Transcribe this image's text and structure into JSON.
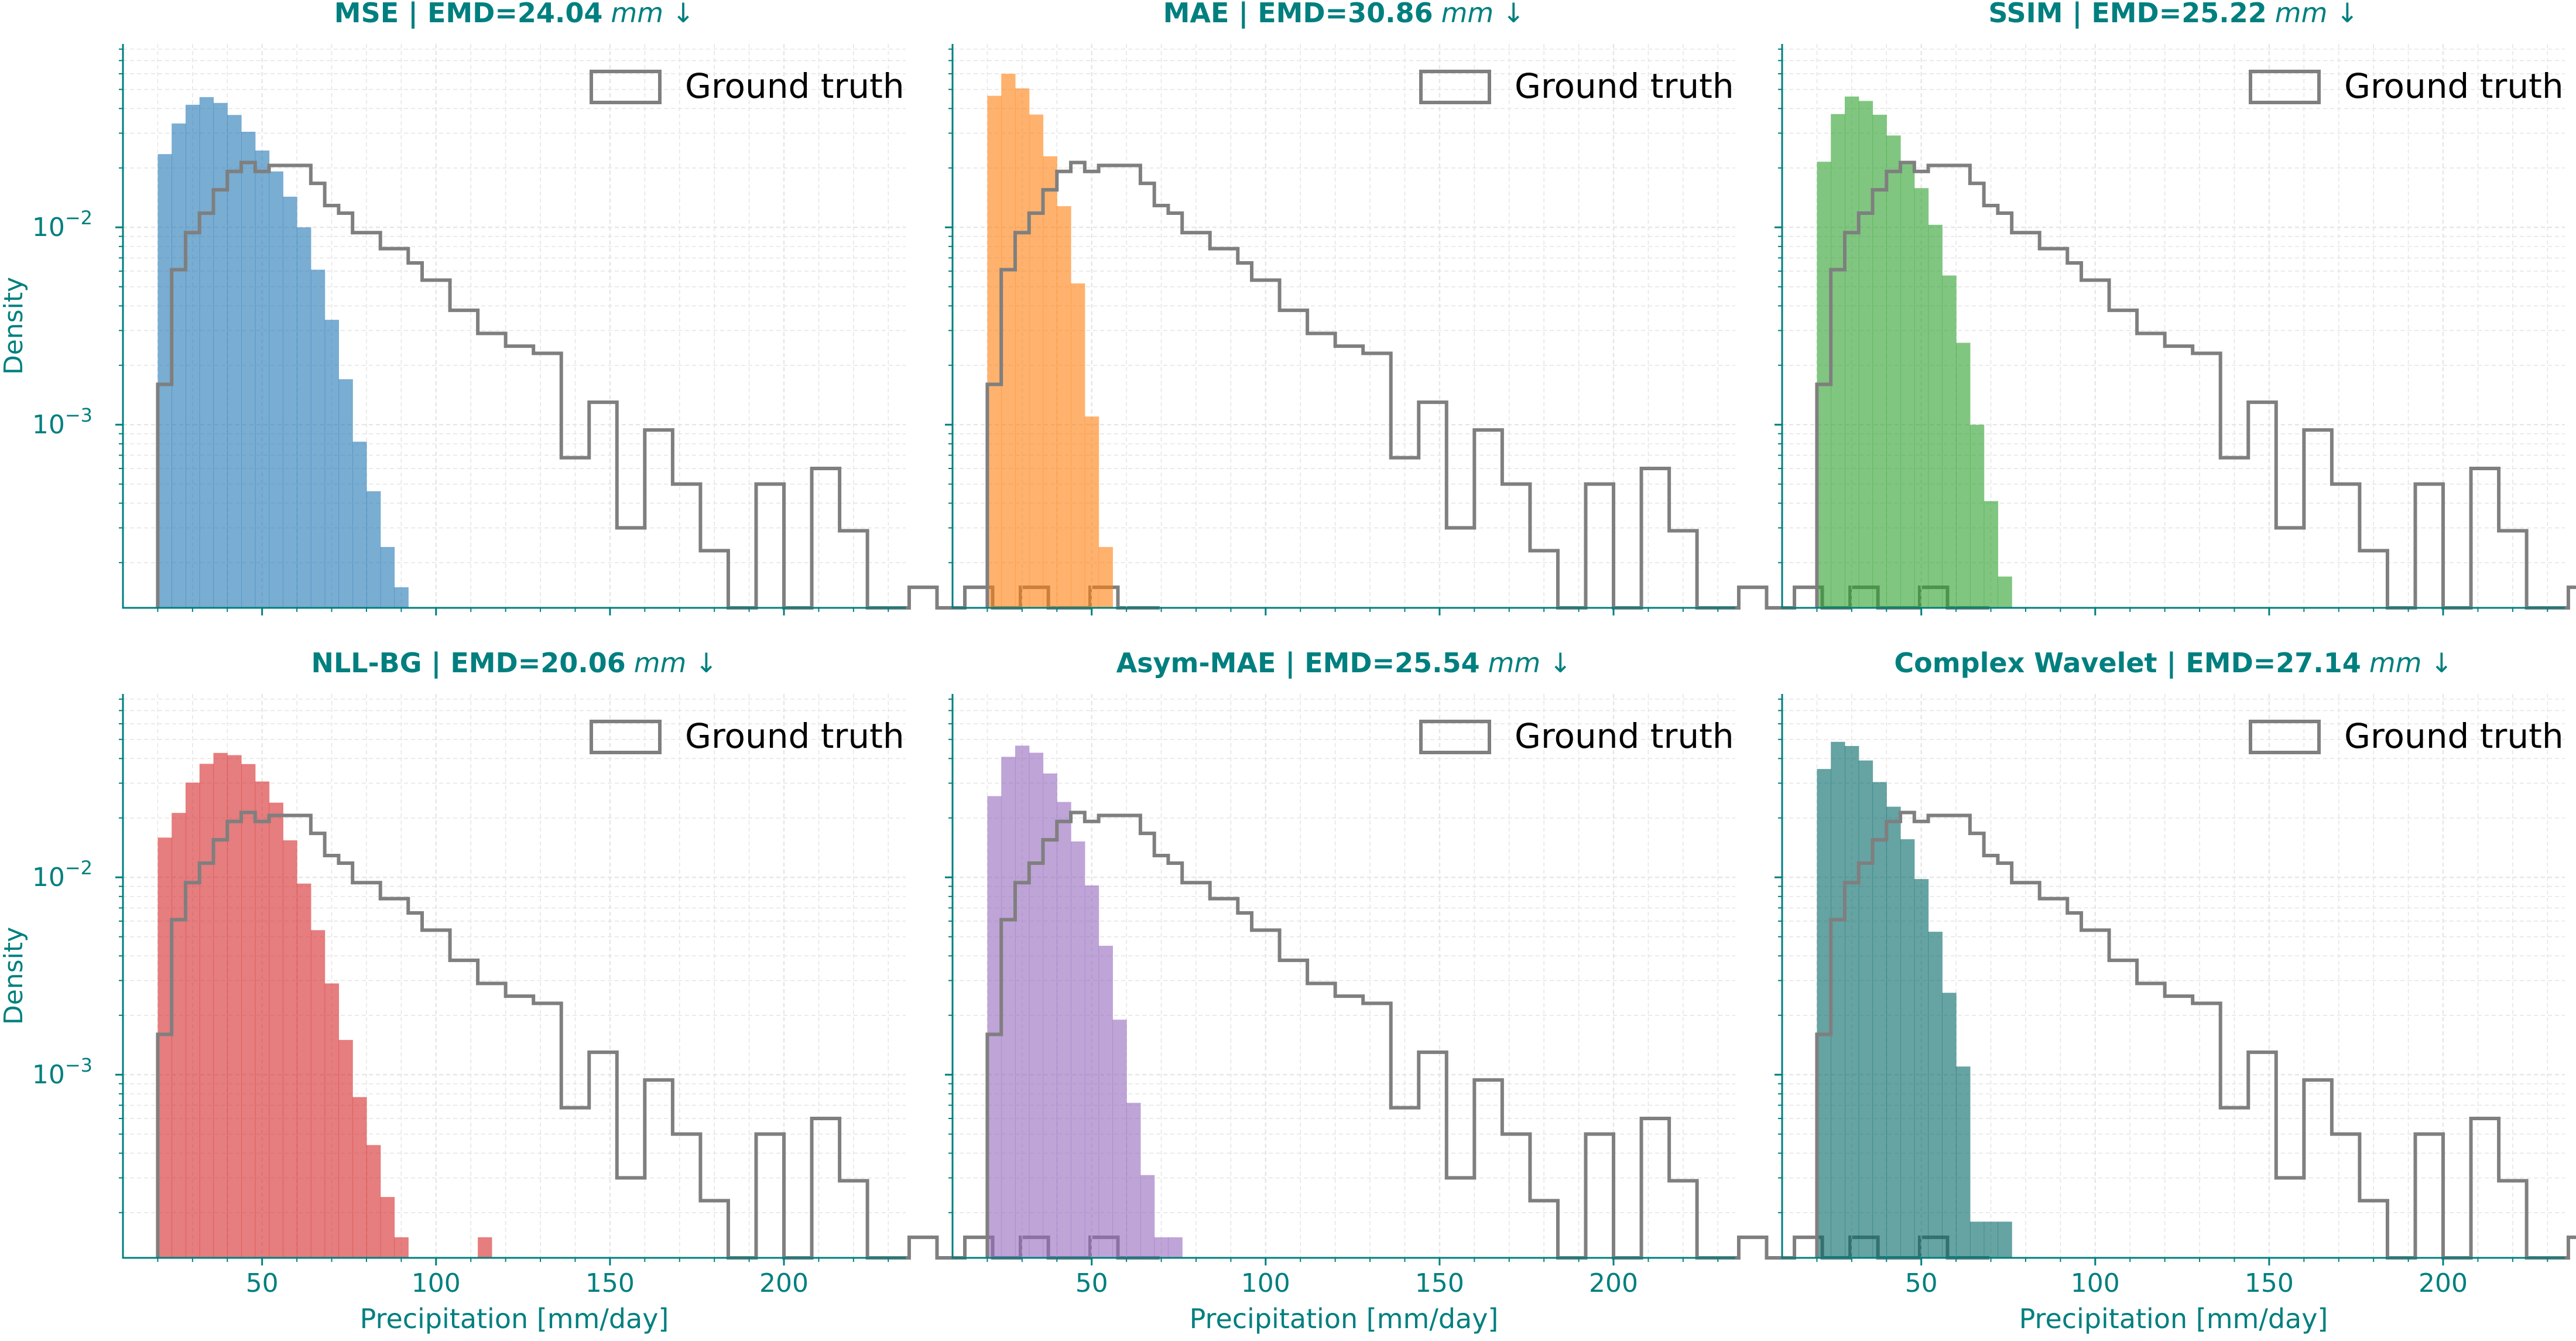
{
  "figure": {
    "accent_color": "#007f7f",
    "ground_truth_color": "#7f7f7f",
    "grid_color": "#e6e6e6"
  },
  "chart_data": [
    {
      "type": "histogram",
      "title": "MSE | EMD=24.04",
      "title_unit": "mm ↓",
      "xlabel": "",
      "ylabel": "Density",
      "yscale": "log",
      "xlim": [
        10,
        235
      ],
      "ylim": [
        0.000118,
        0.085
      ],
      "x_ticks": [
        50,
        100,
        150,
        200
      ],
      "show_x_ticklabels": false,
      "y_major_ticks": [
        {
          "value": 0.01,
          "base": "10",
          "exp": "−2"
        },
        {
          "value": 0.001,
          "base": "10",
          "exp": "−3"
        }
      ],
      "grid": true,
      "legend_position": "upper right",
      "legend_label": "Ground truth",
      "fill_color": "#1f77b4",
      "fill_alpha": 0.6,
      "bin_width": 4,
      "bin_start": 20,
      "series": [
        {
          "name": "",
          "values": [
            0.0235,
            0.0336,
            0.0418,
            0.0457,
            0.0427,
            0.0371,
            0.0305,
            0.0245,
            0.0192,
            0.0143,
            0.01,
            0.0061,
            0.0034,
            0.0017,
            0.00082,
            0.00046,
            0.00024,
            0.00015
          ]
        },
        {
          "name": "Ground truth",
          "values": [
            0.0016,
            0.0061,
            0.0094,
            0.0118,
            0.0155,
            0.0192,
            0.0213,
            0.0192,
            0.0206,
            0.0206,
            0.0206,
            0.0167,
            0.0129,
            0.0118,
            0.0094,
            0.0094,
            0.0078,
            0.0078,
            0.0066,
            0.0054,
            0.0054,
            0.0038,
            0.0038,
            0.0029,
            0.0029,
            0.0025,
            0.0025,
            0.0023,
            0.0023,
            0.00068,
            0.00068,
            0.0013,
            0.0013,
            0.0003,
            0.0003,
            0.00094,
            0.00094,
            0.0005,
            0.0005,
            0.00023,
            0.00023,
            0.0,
            0.0,
            0.0005,
            0.0005,
            0.0,
            0.0,
            0.0006,
            0.0006,
            0.00029,
            0.00029,
            0.0,
            0.0,
            0.0,
            0.00015,
            0.00015,
            0.0,
            0.0,
            0.00015,
            0.00015,
            0.0,
            0.0,
            0.00015,
            0.00015,
            0.0,
            0.0,
            0.0,
            0.00015,
            0.00015,
            0.0,
            0.0,
            0.0
          ]
        }
      ]
    },
    {
      "type": "histogram",
      "title": "MAE | EMD=30.86",
      "title_unit": "mm ↓",
      "xlabel": "",
      "ylabel": "",
      "yscale": "log",
      "xlim": [
        10,
        235
      ],
      "ylim": [
        0.000118,
        0.085
      ],
      "x_ticks": [
        50,
        100,
        150,
        200
      ],
      "show_x_ticklabels": false,
      "y_major_ticks": [
        {
          "value": 0.01,
          "base": "",
          "exp": ""
        },
        {
          "value": 0.001,
          "base": "",
          "exp": ""
        }
      ],
      "grid": true,
      "legend_position": "upper right",
      "legend_label": "Ground truth",
      "fill_color": "#ff7f0e",
      "fill_alpha": 0.6,
      "bin_width": 4,
      "bin_start": 20,
      "series": [
        {
          "name": "",
          "values": [
            0.0464,
            0.06,
            0.0506,
            0.0373,
            0.0229,
            0.0128,
            0.0052,
            0.0011,
            0.00024
          ]
        },
        {
          "name": "Ground truth",
          "values": [
            0.0016,
            0.0061,
            0.0094,
            0.0118,
            0.0155,
            0.0192,
            0.0213,
            0.0192,
            0.0206,
            0.0206,
            0.0206,
            0.0167,
            0.0129,
            0.0118,
            0.0094,
            0.0094,
            0.0078,
            0.0078,
            0.0066,
            0.0054,
            0.0054,
            0.0038,
            0.0038,
            0.0029,
            0.0029,
            0.0025,
            0.0025,
            0.0023,
            0.0023,
            0.00068,
            0.00068,
            0.0013,
            0.0013,
            0.0003,
            0.0003,
            0.00094,
            0.00094,
            0.0005,
            0.0005,
            0.00023,
            0.00023,
            0.0,
            0.0,
            0.0005,
            0.0005,
            0.0,
            0.0,
            0.0006,
            0.0006,
            0.00029,
            0.00029,
            0.0,
            0.0,
            0.0,
            0.00015,
            0.00015,
            0.0,
            0.0,
            0.00015,
            0.00015,
            0.0,
            0.0,
            0.00015,
            0.00015,
            0.0,
            0.0,
            0.0,
            0.00015,
            0.00015,
            0.0,
            0.0,
            0.0
          ]
        }
      ]
    },
    {
      "type": "histogram",
      "title": "SSIM | EMD=25.22",
      "title_unit": "mm ↓",
      "xlabel": "",
      "ylabel": "",
      "yscale": "log",
      "xlim": [
        10,
        235
      ],
      "ylim": [
        0.000118,
        0.085
      ],
      "x_ticks": [
        50,
        100,
        150,
        200
      ],
      "show_x_ticklabels": false,
      "y_major_ticks": [
        {
          "value": 0.01,
          "base": "",
          "exp": ""
        },
        {
          "value": 0.001,
          "base": "",
          "exp": ""
        }
      ],
      "grid": true,
      "legend_position": "upper right",
      "legend_label": "Ground truth",
      "fill_color": "#2ca02c",
      "fill_alpha": 0.6,
      "bin_width": 4,
      "bin_start": 20,
      "series": [
        {
          "name": "",
          "values": [
            0.0215,
            0.0375,
            0.046,
            0.0437,
            0.0372,
            0.0292,
            0.0215,
            0.0158,
            0.0103,
            0.0057,
            0.0026,
            0.001,
            0.00041,
            0.00017
          ]
        },
        {
          "name": "Ground truth",
          "values": [
            0.0016,
            0.0061,
            0.0094,
            0.0118,
            0.0155,
            0.0192,
            0.0213,
            0.0192,
            0.0206,
            0.0206,
            0.0206,
            0.0167,
            0.0129,
            0.0118,
            0.0094,
            0.0094,
            0.0078,
            0.0078,
            0.0066,
            0.0054,
            0.0054,
            0.0038,
            0.0038,
            0.0029,
            0.0029,
            0.0025,
            0.0025,
            0.0023,
            0.0023,
            0.00068,
            0.00068,
            0.0013,
            0.0013,
            0.0003,
            0.0003,
            0.00094,
            0.00094,
            0.0005,
            0.0005,
            0.00023,
            0.00023,
            0.0,
            0.0,
            0.0005,
            0.0005,
            0.0,
            0.0,
            0.0006,
            0.0006,
            0.00029,
            0.00029,
            0.0,
            0.0,
            0.0,
            0.00015,
            0.00015,
            0.0,
            0.0,
            0.00015,
            0.00015,
            0.0,
            0.0,
            0.00015,
            0.00015,
            0.0,
            0.0,
            0.0,
            0.00015,
            0.00015,
            0.0,
            0.0,
            0.0
          ]
        }
      ]
    },
    {
      "type": "histogram",
      "title": "NLL-BG | EMD=20.06",
      "title_unit": "mm ↓",
      "xlabel": "Precipitation [mm/day]",
      "ylabel": "Density",
      "yscale": "log",
      "xlim": [
        10,
        235
      ],
      "ylim": [
        0.000118,
        0.085
      ],
      "x_ticks": [
        50,
        100,
        150,
        200
      ],
      "show_x_ticklabels": true,
      "y_major_ticks": [
        {
          "value": 0.01,
          "base": "10",
          "exp": "−2"
        },
        {
          "value": 0.001,
          "base": "10",
          "exp": "−3"
        }
      ],
      "grid": true,
      "legend_position": "upper right",
      "legend_label": "Ground truth",
      "fill_color": "#d62728",
      "fill_alpha": 0.6,
      "bin_width": 4,
      "bin_start": 20,
      "series": [
        {
          "name": "",
          "values": [
            0.0159,
            0.0212,
            0.0302,
            0.0376,
            0.0427,
            0.0416,
            0.0375,
            0.0306,
            0.0239,
            0.0154,
            0.0093,
            0.0054,
            0.0029,
            0.0015,
            0.00077,
            0.00044,
            0.00024,
            0.00015,
            0.0,
            0.0,
            0.0,
            0.0,
            0.0,
            0.00015
          ]
        },
        {
          "name": "Ground truth",
          "values": [
            0.0016,
            0.0061,
            0.0094,
            0.0118,
            0.0155,
            0.0192,
            0.0213,
            0.0192,
            0.0206,
            0.0206,
            0.0206,
            0.0167,
            0.0129,
            0.0118,
            0.0094,
            0.0094,
            0.0078,
            0.0078,
            0.0066,
            0.0054,
            0.0054,
            0.0038,
            0.0038,
            0.0029,
            0.0029,
            0.0025,
            0.0025,
            0.0023,
            0.0023,
            0.00068,
            0.00068,
            0.0013,
            0.0013,
            0.0003,
            0.0003,
            0.00094,
            0.00094,
            0.0005,
            0.0005,
            0.00023,
            0.00023,
            0.0,
            0.0,
            0.0005,
            0.0005,
            0.0,
            0.0,
            0.0006,
            0.0006,
            0.00029,
            0.00029,
            0.0,
            0.0,
            0.0,
            0.00015,
            0.00015,
            0.0,
            0.0,
            0.00015,
            0.00015,
            0.0,
            0.0,
            0.00015,
            0.00015,
            0.0,
            0.0,
            0.0,
            0.00015,
            0.00015,
            0.0,
            0.0,
            0.0
          ]
        }
      ]
    },
    {
      "type": "histogram",
      "title": "Asym-MAE | EMD=25.54",
      "title_unit": "mm ↓",
      "xlabel": "Precipitation [mm/day]",
      "ylabel": "",
      "yscale": "log",
      "xlim": [
        10,
        235
      ],
      "ylim": [
        0.000118,
        0.085
      ],
      "x_ticks": [
        50,
        100,
        150,
        200
      ],
      "show_x_ticklabels": true,
      "y_major_ticks": [
        {
          "value": 0.01,
          "base": "",
          "exp": ""
        },
        {
          "value": 0.001,
          "base": "",
          "exp": ""
        }
      ],
      "grid": true,
      "legend_position": "upper right",
      "legend_label": "Ground truth",
      "fill_color": "#9467bd",
      "fill_alpha": 0.6,
      "bin_width": 4,
      "bin_start": 20,
      "series": [
        {
          "name": "",
          "values": [
            0.0258,
            0.0408,
            0.0465,
            0.0428,
            0.0336,
            0.0241,
            0.0152,
            0.0091,
            0.0045,
            0.0019,
            0.00072,
            0.00031,
            0.00015,
            0.00015
          ]
        },
        {
          "name": "Ground truth",
          "values": [
            0.0016,
            0.0061,
            0.0094,
            0.0118,
            0.0155,
            0.0192,
            0.0213,
            0.0192,
            0.0206,
            0.0206,
            0.0206,
            0.0167,
            0.0129,
            0.0118,
            0.0094,
            0.0094,
            0.0078,
            0.0078,
            0.0066,
            0.0054,
            0.0054,
            0.0038,
            0.0038,
            0.0029,
            0.0029,
            0.0025,
            0.0025,
            0.0023,
            0.0023,
            0.00068,
            0.00068,
            0.0013,
            0.0013,
            0.0003,
            0.0003,
            0.00094,
            0.00094,
            0.0005,
            0.0005,
            0.00023,
            0.00023,
            0.0,
            0.0,
            0.0005,
            0.0005,
            0.0,
            0.0,
            0.0006,
            0.0006,
            0.00029,
            0.00029,
            0.0,
            0.0,
            0.0,
            0.00015,
            0.00015,
            0.0,
            0.0,
            0.00015,
            0.00015,
            0.0,
            0.0,
            0.00015,
            0.00015,
            0.0,
            0.0,
            0.0,
            0.00015,
            0.00015,
            0.0,
            0.0,
            0.0
          ]
        }
      ]
    },
    {
      "type": "histogram",
      "title": "Complex Wavelet | EMD=27.14",
      "title_unit": "mm ↓",
      "xlabel": "Precipitation [mm/day]",
      "ylabel": "",
      "yscale": "log",
      "xlim": [
        10,
        235
      ],
      "ylim": [
        0.000118,
        0.085
      ],
      "x_ticks": [
        50,
        100,
        150,
        200
      ],
      "show_x_ticklabels": true,
      "y_major_ticks": [
        {
          "value": 0.01,
          "base": "",
          "exp": ""
        },
        {
          "value": 0.001,
          "base": "",
          "exp": ""
        }
      ],
      "grid": true,
      "legend_position": "upper right",
      "legend_label": "Ground truth",
      "fill_color": "#006666",
      "fill_alpha": 0.6,
      "bin_width": 4,
      "bin_start": 20,
      "series": [
        {
          "name": "",
          "values": [
            0.0354,
            0.0486,
            0.0463,
            0.0391,
            0.0304,
            0.0228,
            0.0156,
            0.0098,
            0.0053,
            0.0026,
            0.0011,
            0.00018,
            0.00018,
            0.00018
          ]
        },
        {
          "name": "Ground truth",
          "values": [
            0.0016,
            0.0061,
            0.0094,
            0.0118,
            0.0155,
            0.0192,
            0.0213,
            0.0192,
            0.0206,
            0.0206,
            0.0206,
            0.0167,
            0.0129,
            0.0118,
            0.0094,
            0.0094,
            0.0078,
            0.0078,
            0.0066,
            0.0054,
            0.0054,
            0.0038,
            0.0038,
            0.0029,
            0.0029,
            0.0025,
            0.0025,
            0.0023,
            0.0023,
            0.00068,
            0.00068,
            0.0013,
            0.0013,
            0.0003,
            0.0003,
            0.00094,
            0.00094,
            0.0005,
            0.0005,
            0.00023,
            0.00023,
            0.0,
            0.0,
            0.0005,
            0.0005,
            0.0,
            0.0,
            0.0006,
            0.0006,
            0.00029,
            0.00029,
            0.0,
            0.0,
            0.0,
            0.00015,
            0.00015,
            0.0,
            0.0,
            0.00015,
            0.00015,
            0.0,
            0.0,
            0.00015,
            0.00015,
            0.0,
            0.0,
            0.0,
            0.00015,
            0.00015,
            0.0,
            0.0,
            0.0
          ]
        }
      ]
    }
  ]
}
